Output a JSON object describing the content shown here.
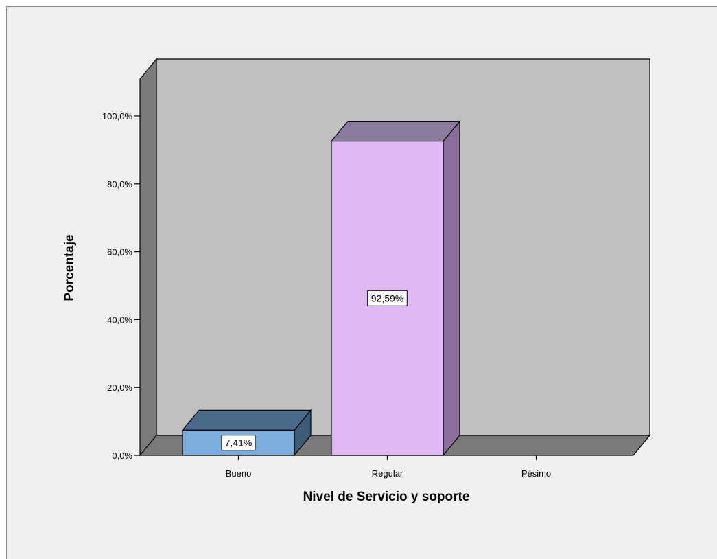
{
  "chart_data": {
    "type": "bar",
    "style": "3d",
    "categories": [
      "Bueno",
      "Regular",
      "Pésimo"
    ],
    "values": [
      7.41,
      92.59,
      0
    ],
    "data_labels": [
      "7,41%",
      "92,59%",
      ""
    ],
    "title": "",
    "xlabel": "Nivel de Servicio y soporte",
    "ylabel": "Porcentaje",
    "ylim": [
      0,
      110
    ],
    "yticks": [
      0,
      20,
      40,
      60,
      80,
      100
    ],
    "ytick_labels": [
      "0,0%",
      "20,0%",
      "40,0%",
      "60,0%",
      "80,0%",
      "100,0%"
    ],
    "grid": false,
    "legend": "none",
    "colors": {
      "frame_bg": "#f0f0f0",
      "back_wall": "#c0c0c0",
      "side_wall": "#7a7a7a",
      "floor": "#7a7a7a",
      "bar_fronts": [
        "#7bacdc",
        "#e0b8f4",
        "#cccccc"
      ],
      "bar_tops": [
        "#4a6a8a",
        "#8a7a9c",
        "#999999"
      ],
      "bar_sides": [
        "#3e5c7a",
        "#8a7098",
        "#888888"
      ]
    }
  }
}
